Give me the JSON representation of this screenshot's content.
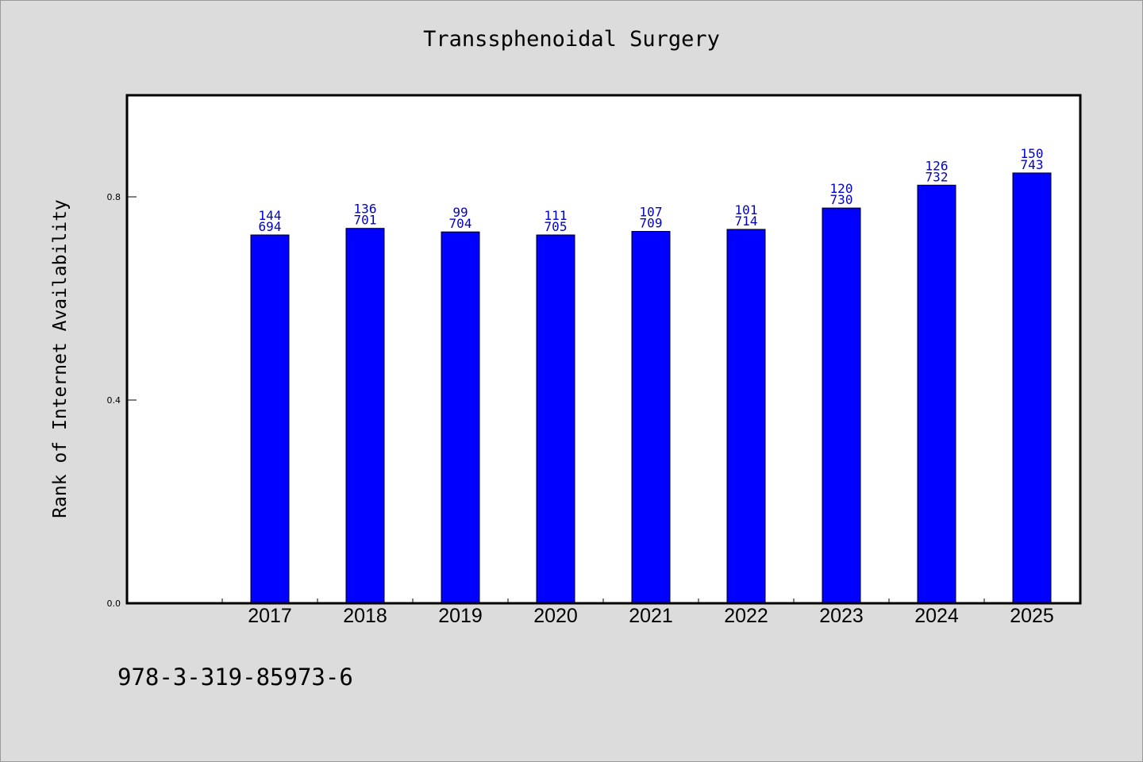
{
  "chart_data": {
    "type": "bar",
    "title": "Transsphenoidal Surgery",
    "xlabel": "",
    "ylabel": "Rank of Internet Availability",
    "categories": [
      "2017",
      "2018",
      "2019",
      "2020",
      "2021",
      "2022",
      "2023",
      "2024",
      "2025"
    ],
    "values": [
      0.725,
      0.738,
      0.731,
      0.725,
      0.732,
      0.736,
      0.778,
      0.823,
      0.847
    ],
    "labels_top": [
      "144",
      "136",
      "99",
      "111",
      "107",
      "101",
      "120",
      "126",
      "150"
    ],
    "labels_bottom": [
      "694",
      "701",
      "704",
      "705",
      "709",
      "714",
      "730",
      "732",
      "743"
    ],
    "ylim": [
      0,
      1.0
    ],
    "yticks": [
      0.0,
      0.4,
      0.8
    ],
    "ytick_labels": [
      "0.0",
      "0.4",
      "0.8"
    ],
    "grid": false,
    "bar_color": "#0000ff",
    "label_color": "#0000cc",
    "background_color": "#dcdcdc",
    "plot_background": "#ffffff"
  },
  "footer": {
    "isbn": "978-3-319-85973-6"
  }
}
